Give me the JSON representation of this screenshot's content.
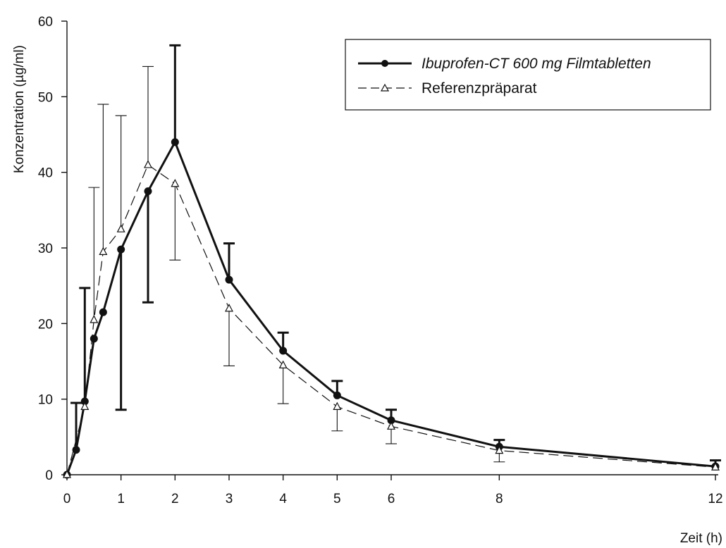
{
  "chart_data": {
    "type": "line",
    "xlabel": "Zeit (h)",
    "ylabel": "Konzentration (µg/ml)",
    "xlim": [
      0,
      12
    ],
    "ylim": [
      0,
      60
    ],
    "x_ticks": [
      0,
      1,
      2,
      3,
      4,
      5,
      6,
      8,
      12
    ],
    "y_ticks": [
      0,
      10,
      20,
      30,
      40,
      50,
      60
    ],
    "grid": false,
    "legend_position": "top-right",
    "series": [
      {
        "name": "Ibuprofen-CT 600 mg Filmtabletten",
        "style": "solid",
        "marker": "filled-circle",
        "color": "#111111",
        "x": [
          0,
          0.17,
          0.33,
          0.5,
          0.67,
          1,
          1.5,
          2,
          3,
          4,
          5,
          6,
          8,
          12
        ],
        "y": [
          0,
          3.3,
          9.7,
          18,
          21.5,
          29.8,
          37.5,
          44,
          25.8,
          16.4,
          10.5,
          7.2,
          3.7,
          1.1
        ],
        "error_upper": [
          0,
          9.5,
          24.7,
          0,
          0,
          0,
          0,
          56.8,
          30.6,
          18.8,
          12.4,
          8.6,
          4.6,
          1.9
        ],
        "error_lower": [
          0,
          0,
          0,
          0,
          0,
          8.6,
          22.8,
          0,
          0,
          0,
          0,
          0,
          0,
          0
        ]
      },
      {
        "name": "Referenzpräparat",
        "style": "dashed",
        "marker": "open-triangle",
        "color": "#111111",
        "x": [
          0,
          0.33,
          0.5,
          0.67,
          1,
          1.5,
          2,
          3,
          4,
          5,
          6,
          8,
          12
        ],
        "y": [
          0,
          9,
          20.5,
          29.5,
          32.5,
          41,
          38.5,
          22,
          14.5,
          9,
          6.4,
          3.2,
          1
        ],
        "error_upper": [
          0,
          0,
          38,
          49,
          47.5,
          54,
          0,
          0,
          0,
          0,
          0,
          0,
          0
        ],
        "error_lower": [
          0,
          0,
          0,
          0,
          0,
          0,
          28.4,
          14.4,
          9.4,
          5.8,
          4.1,
          1.7,
          0
        ]
      }
    ]
  }
}
